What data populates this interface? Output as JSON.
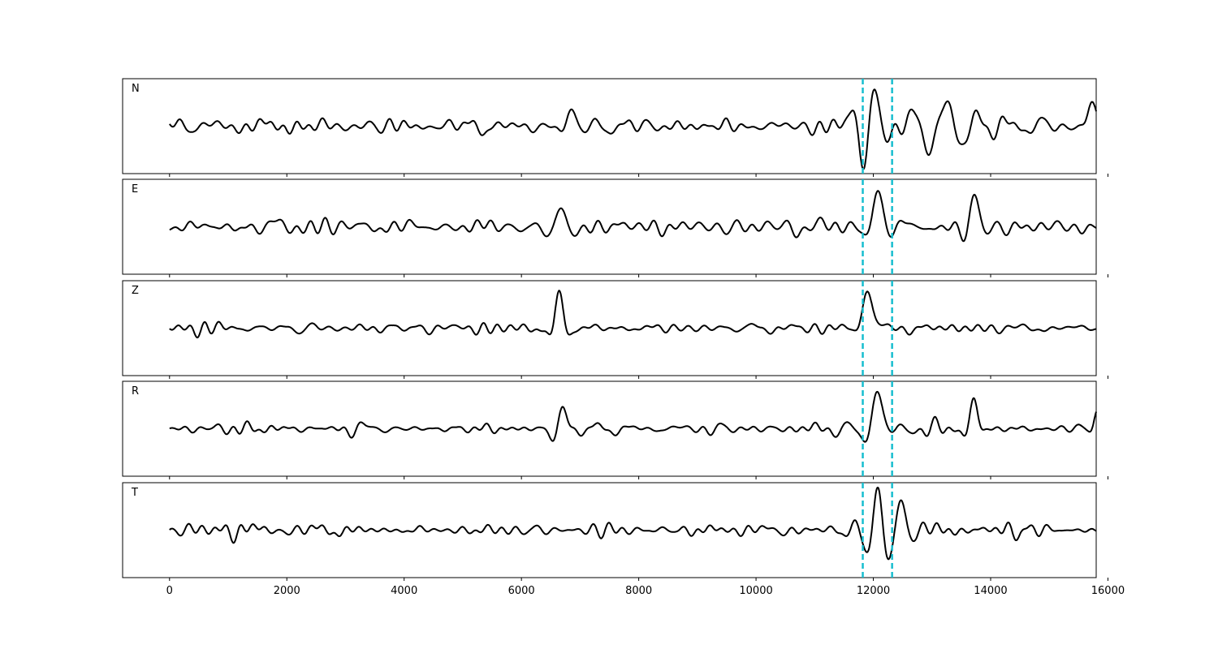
{
  "chart_data": {
    "type": "line",
    "xlim": [
      -800,
      15800
    ],
    "x_ticks": [
      0,
      2000,
      4000,
      6000,
      8000,
      10000,
      12000,
      14000,
      16000
    ],
    "x_tick_labels": [
      "0",
      "2000",
      "4000",
      "6000",
      "8000",
      "10000",
      "12000",
      "14000",
      "16000"
    ],
    "x_range": [
      0,
      15800
    ],
    "samples": 1581,
    "ylim": [
      -1,
      1
    ],
    "markers": [
      11820,
      12320
    ],
    "colors": {
      "trace": "#000000",
      "marker": "#17BECF",
      "frame": "#000000"
    },
    "series": [
      {
        "name": "N",
        "noise_amp": 0.3,
        "events": [
          {
            "x": 6820,
            "amp": 0.5,
            "width": 150,
            "freq": 0.002
          },
          {
            "x": 12000,
            "amp": 0.95,
            "width": 200,
            "freq": 0.0024
          },
          {
            "x": 13200,
            "amp": 0.5,
            "width": 700,
            "freq": 0.0018
          },
          {
            "x": 15700,
            "amp": 0.6,
            "width": 80,
            "freq": 0.0015
          }
        ]
      },
      {
        "name": "E",
        "noise_amp": 0.25,
        "events": [
          {
            "x": 6650,
            "amp": 0.45,
            "width": 200,
            "freq": 0.002
          },
          {
            "x": 12050,
            "amp": 0.95,
            "width": 120,
            "freq": 0.0018
          },
          {
            "x": 13700,
            "amp": 0.7,
            "width": 120,
            "freq": 0.002
          }
        ]
      },
      {
        "name": "Z",
        "noise_amp": 0.22,
        "events": [
          {
            "x": 6620,
            "amp": 0.95,
            "width": 110,
            "freq": 0.0022
          },
          {
            "x": 11880,
            "amp": 0.95,
            "width": 110,
            "freq": 0.0012
          }
        ]
      },
      {
        "name": "R",
        "noise_amp": 0.28,
        "events": [
          {
            "x": 6700,
            "amp": 0.5,
            "width": 150,
            "freq": 0.002
          },
          {
            "x": 12050,
            "amp": 0.95,
            "width": 150,
            "freq": 0.0016
          },
          {
            "x": 13700,
            "amp": 0.7,
            "width": 100,
            "freq": 0.002
          },
          {
            "x": 15800,
            "amp": 0.5,
            "width": 60,
            "freq": 0.0015
          }
        ]
      },
      {
        "name": "T",
        "noise_amp": 0.3,
        "events": [
          {
            "x": 12050,
            "amp": 0.95,
            "width": 180,
            "freq": 0.0025
          },
          {
            "x": 12450,
            "amp": 0.6,
            "width": 120,
            "freq": 0.002
          }
        ]
      }
    ]
  }
}
